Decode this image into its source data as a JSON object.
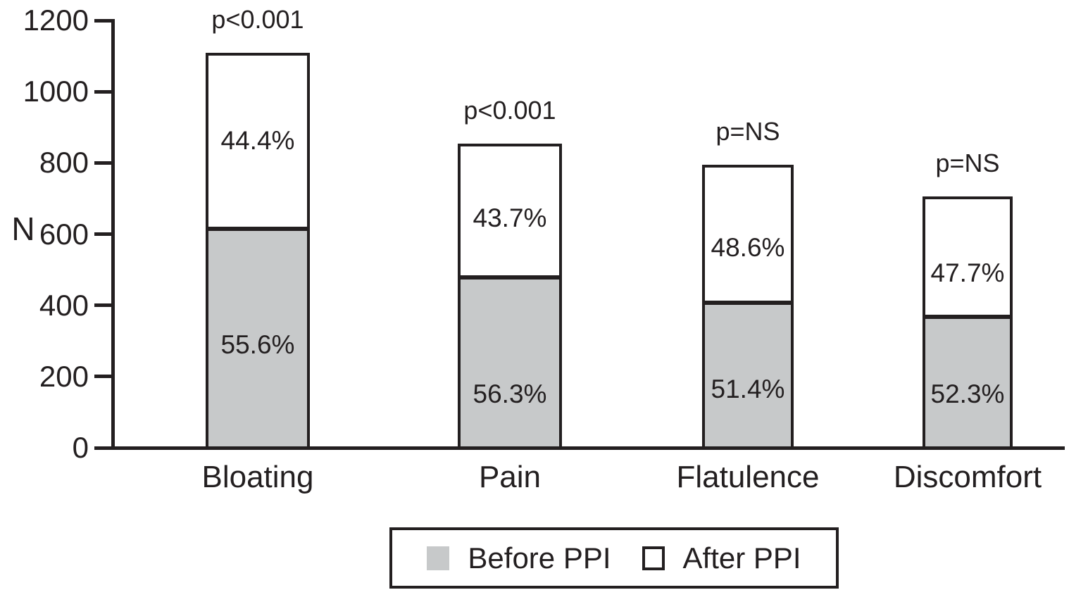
{
  "colors": {
    "ink": "#231f20",
    "before_fill": "#c7c9ca",
    "after_fill": "#ffffff",
    "background": "#ffffff"
  },
  "chart_data": {
    "type": "bar",
    "stacked": true,
    "title": "",
    "xlabel": "",
    "ylabel": "N",
    "ylim": [
      0,
      1200
    ],
    "yticks": [
      0,
      200,
      400,
      600,
      800,
      1000,
      1200
    ],
    "grid": false,
    "legend_position": "bottom",
    "categories": [
      "Bloating",
      "Pain",
      "Flatulence",
      "Discomfort"
    ],
    "totals": [
      1110,
      855,
      795,
      705
    ],
    "series": [
      {
        "name": "Before PPI",
        "color": "#c7c9ca",
        "values": [
          617,
          481,
          409,
          369
        ],
        "pct_labels": [
          "55.6%",
          "56.3%",
          "51.4%",
          "52.3%"
        ]
      },
      {
        "name": "After PPI",
        "color": "#ffffff",
        "values": [
          493,
          374,
          386,
          336
        ],
        "pct_labels": [
          "44.4%",
          "43.7%",
          "48.6%",
          "47.7%"
        ]
      }
    ],
    "p_values": [
      "p<0.001",
      "p<0.001",
      "p=NS",
      "p=NS"
    ]
  }
}
